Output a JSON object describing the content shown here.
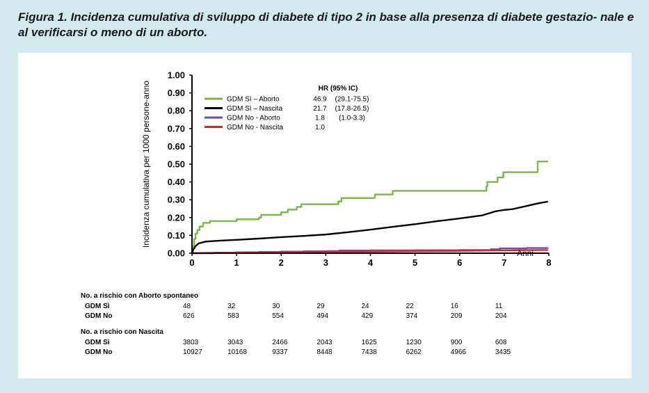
{
  "caption": "Figura 1. Incidenza cumulativa di sviluppo di diabete di tipo 2 in base alla presenza di diabete gestazio- nale e al verificarsi o meno di un aborto.",
  "chart_data": {
    "type": "line",
    "ylabel": "Incidenza cumulativa per 1000 persone-anno",
    "xlabel": "Anni",
    "xlim": [
      0,
      8
    ],
    "ylim": [
      0,
      1.0
    ],
    "x_ticks": [
      "0",
      "1",
      "2",
      "3",
      "4",
      "5",
      "6",
      "7",
      "8"
    ],
    "y_ticks": [
      "0.00",
      "0.10",
      "0.20",
      "0.30",
      "0.40",
      "0.50",
      "0.60",
      "0.70",
      "0.80",
      "0.90",
      "1.00"
    ],
    "legend_header": "HR (95% IC)",
    "legend_position": "top-left",
    "series": [
      {
        "name": "GDM Sì – Aborto",
        "hr": "46.9",
        "ci": "(29.1-75.5)",
        "color": "#7ab648",
        "step": true,
        "points": [
          [
            0,
            0
          ],
          [
            0.02,
            0.04
          ],
          [
            0.05,
            0.08
          ],
          [
            0.08,
            0.11
          ],
          [
            0.12,
            0.13
          ],
          [
            0.17,
            0.15
          ],
          [
            0.25,
            0.17
          ],
          [
            0.4,
            0.18
          ],
          [
            1.0,
            0.18
          ],
          [
            1.0,
            0.19
          ],
          [
            1.45,
            0.19
          ],
          [
            1.5,
            0.2
          ],
          [
            1.55,
            0.215
          ],
          [
            1.95,
            0.215
          ],
          [
            2.0,
            0.23
          ],
          [
            2.15,
            0.245
          ],
          [
            2.35,
            0.26
          ],
          [
            2.45,
            0.275
          ],
          [
            3.2,
            0.275
          ],
          [
            3.28,
            0.29
          ],
          [
            3.35,
            0.31
          ],
          [
            4.05,
            0.31
          ],
          [
            4.1,
            0.33
          ],
          [
            4.45,
            0.33
          ],
          [
            4.5,
            0.35
          ],
          [
            6.55,
            0.35
          ],
          [
            6.6,
            0.375
          ],
          [
            6.62,
            0.4
          ],
          [
            6.82,
            0.4
          ],
          [
            6.85,
            0.425
          ],
          [
            6.95,
            0.425
          ],
          [
            6.98,
            0.455
          ],
          [
            7.72,
            0.455
          ],
          [
            7.75,
            0.515
          ],
          [
            7.98,
            0.515
          ]
        ]
      },
      {
        "name": "GDM Sì – Nascita",
        "hr": "21.7",
        "ci": "(17.8-26.5)",
        "color": "#000000",
        "step": false,
        "points": [
          [
            0,
            0
          ],
          [
            0.03,
            0.02
          ],
          [
            0.08,
            0.04
          ],
          [
            0.15,
            0.055
          ],
          [
            0.3,
            0.065
          ],
          [
            0.6,
            0.07
          ],
          [
            1.0,
            0.075
          ],
          [
            1.5,
            0.082
          ],
          [
            2.0,
            0.09
          ],
          [
            2.5,
            0.097
          ],
          [
            3.0,
            0.105
          ],
          [
            3.5,
            0.118
          ],
          [
            4.0,
            0.132
          ],
          [
            4.5,
            0.148
          ],
          [
            5.0,
            0.163
          ],
          [
            5.5,
            0.18
          ],
          [
            6.0,
            0.195
          ],
          [
            6.5,
            0.212
          ],
          [
            6.8,
            0.235
          ],
          [
            7.0,
            0.243
          ],
          [
            7.2,
            0.248
          ],
          [
            7.5,
            0.265
          ],
          [
            7.8,
            0.282
          ],
          [
            7.98,
            0.29
          ]
        ]
      },
      {
        "name": "GDM No - Aborto",
        "hr": "1.8",
        "ci": "(1.0-3.3)",
        "color": "#6a4fb0",
        "step": true,
        "points": [
          [
            0,
            0
          ],
          [
            0.5,
            0.003
          ],
          [
            1.0,
            0.005
          ],
          [
            1.5,
            0.007
          ],
          [
            2.0,
            0.009
          ],
          [
            2.5,
            0.011
          ],
          [
            3.0,
            0.012
          ],
          [
            3.3,
            0.015
          ],
          [
            4.0,
            0.016
          ],
          [
            5.0,
            0.017
          ],
          [
            6.0,
            0.018
          ],
          [
            6.7,
            0.022
          ],
          [
            6.9,
            0.027
          ],
          [
            7.5,
            0.029
          ],
          [
            7.98,
            0.03
          ]
        ]
      },
      {
        "name": "GDM No - Nascita",
        "hr": "1.0",
        "ci": "",
        "color": "#e0202a",
        "step": false,
        "points": [
          [
            0,
            0
          ],
          [
            0.5,
            0.002
          ],
          [
            1.0,
            0.003
          ],
          [
            2.0,
            0.005
          ],
          [
            3.0,
            0.007
          ],
          [
            4.0,
            0.009
          ],
          [
            5.0,
            0.011
          ],
          [
            6.0,
            0.013
          ],
          [
            7.0,
            0.016
          ],
          [
            7.98,
            0.018
          ]
        ]
      }
    ]
  },
  "risk_tables": [
    {
      "title": "No. a rischio con Aborto spontaneo",
      "rows": [
        {
          "label": "GDM Sì",
          "values": [
            "48",
            "32",
            "30",
            "29",
            "24",
            "22",
            "16",
            "11"
          ]
        },
        {
          "label": "GDM No",
          "values": [
            "626",
            "583",
            "554",
            "494",
            "429",
            "374",
            "209",
            "204"
          ]
        }
      ]
    },
    {
      "title": "No. a rischio con Nascita",
      "rows": [
        {
          "label": "GDM Sì",
          "values": [
            "3803",
            "3043",
            "2466",
            "2043",
            "1625",
            "1230",
            "900",
            "608"
          ]
        },
        {
          "label": "GDM No",
          "values": [
            "10927",
            "10168",
            "9337",
            "8448",
            "7438",
            "6262",
            "4966",
            "3435"
          ]
        }
      ]
    }
  ]
}
